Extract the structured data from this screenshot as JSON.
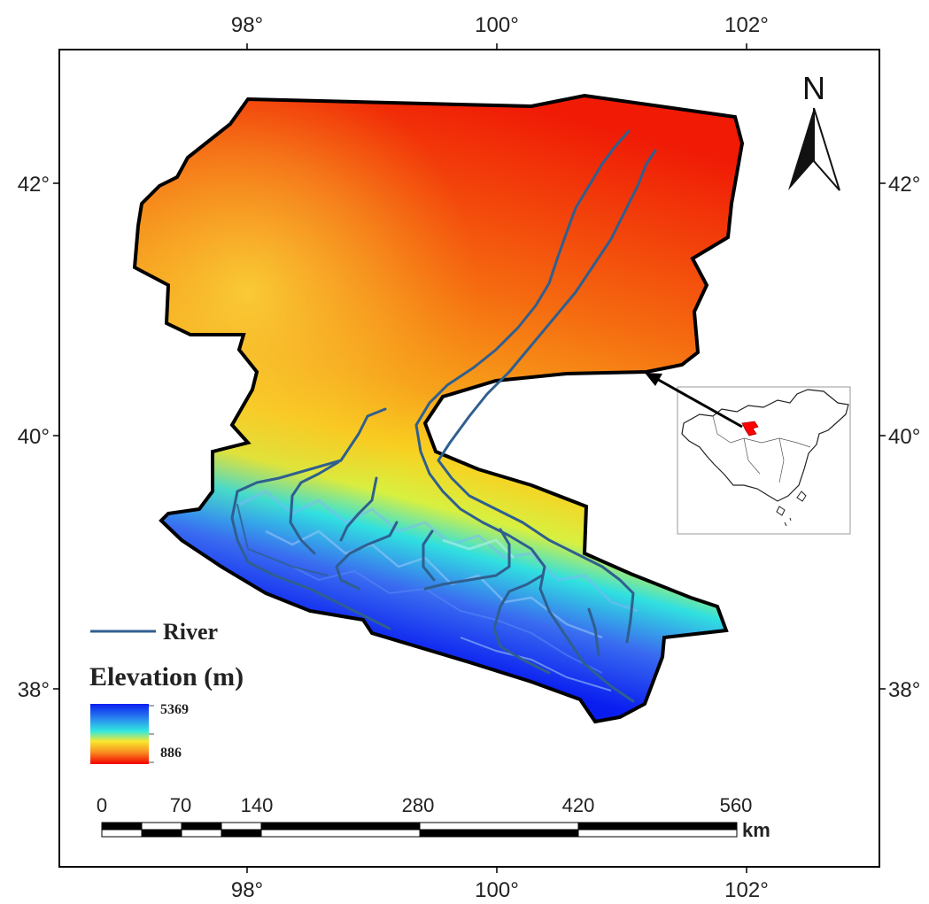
{
  "longitude_ticks": [
    "98°",
    "100°",
    "102°"
  ],
  "latitude_ticks": [
    "42°",
    "40°",
    "38°"
  ],
  "north_arrow": {
    "label": "N"
  },
  "legend": {
    "river_label": "River",
    "elevation_title": "Elevation (m)",
    "elevation_max": "5369",
    "elevation_min": "886"
  },
  "scale_bar": {
    "labels": [
      "0",
      "70",
      "140",
      "280",
      "420",
      "560"
    ],
    "unit": "km"
  },
  "colors": {
    "river": "#2f5f8f",
    "boundary": "#000000",
    "elevation_high": "#0a1ef0",
    "elevation_mid": "#2ae8e0",
    "elevation_low": "#f20000",
    "inset_highlight": "#ff0000"
  }
}
